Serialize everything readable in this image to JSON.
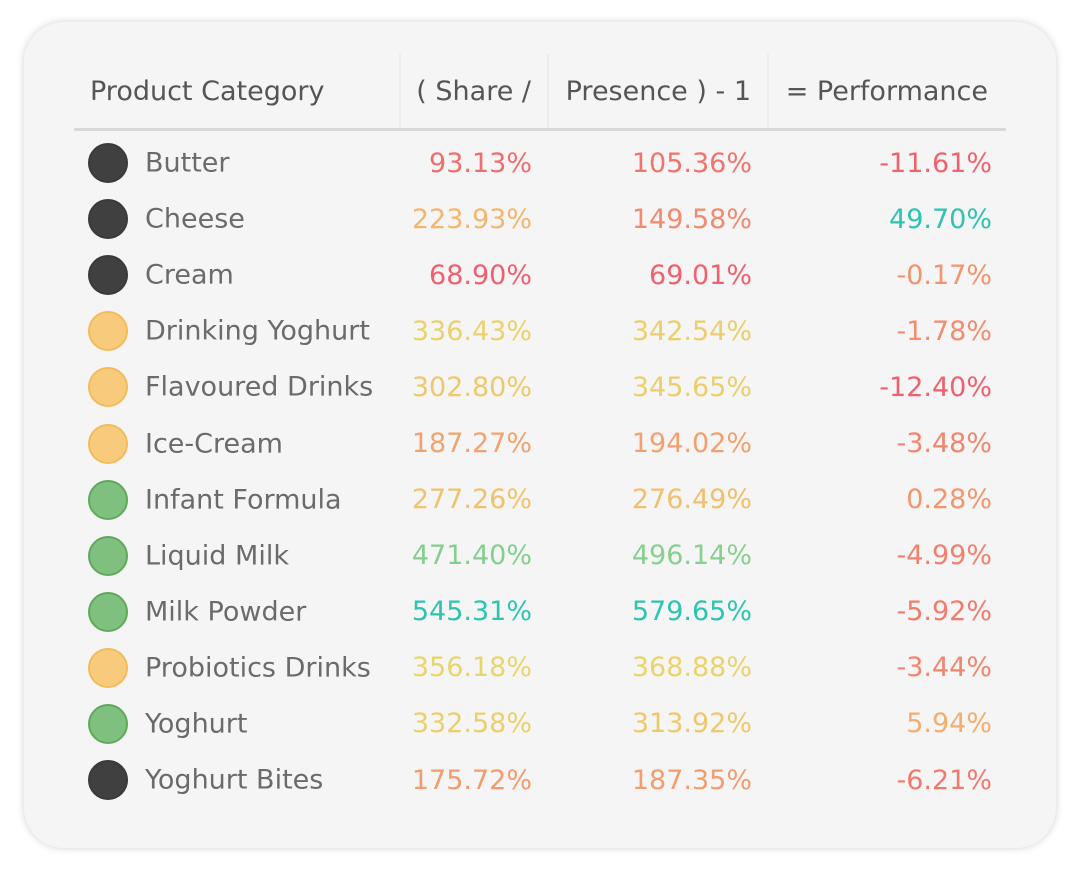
{
  "chart_data": {
    "type": "table",
    "columns": [
      "Product Category",
      "( Share /",
      "Presence ) - 1",
      "= Performance"
    ],
    "rows": [
      {
        "category": "Butter",
        "status": "dark",
        "share": "93.13%",
        "presence": "105.36%",
        "performance": "-11.61%",
        "share_value": 93.13,
        "presence_value": 105.36,
        "performance_value": -11.61
      },
      {
        "category": "Cheese",
        "status": "dark",
        "share": "223.93%",
        "presence": "149.58%",
        "performance": "49.70%",
        "share_value": 223.93,
        "presence_value": 149.58,
        "performance_value": 49.7
      },
      {
        "category": "Cream",
        "status": "dark",
        "share": "68.90%",
        "presence": "69.01%",
        "performance": "-0.17%",
        "share_value": 68.9,
        "presence_value": 69.01,
        "performance_value": -0.17
      },
      {
        "category": "Drinking Yoghurt",
        "status": "amber",
        "share": "336.43%",
        "presence": "342.54%",
        "performance": "-1.78%",
        "share_value": 336.43,
        "presence_value": 342.54,
        "performance_value": -1.78
      },
      {
        "category": "Flavoured Drinks",
        "status": "amber",
        "share": "302.80%",
        "presence": "345.65%",
        "performance": "-12.40%",
        "share_value": 302.8,
        "presence_value": 345.65,
        "performance_value": -12.4
      },
      {
        "category": "Ice-Cream",
        "status": "amber",
        "share": "187.27%",
        "presence": "194.02%",
        "performance": "-3.48%",
        "share_value": 187.27,
        "presence_value": 194.02,
        "performance_value": -3.48
      },
      {
        "category": "Infant Formula",
        "status": "green",
        "share": "277.26%",
        "presence": "276.49%",
        "performance": "0.28%",
        "share_value": 277.26,
        "presence_value": 276.49,
        "performance_value": 0.28
      },
      {
        "category": "Liquid Milk",
        "status": "green",
        "share": "471.40%",
        "presence": "496.14%",
        "performance": "-4.99%",
        "share_value": 471.4,
        "presence_value": 496.14,
        "performance_value": -4.99
      },
      {
        "category": "Milk Powder",
        "status": "green",
        "share": "545.31%",
        "presence": "579.65%",
        "performance": "-5.92%",
        "share_value": 545.31,
        "presence_value": 579.65,
        "performance_value": -5.92
      },
      {
        "category": "Probiotics Drinks",
        "status": "amber",
        "share": "356.18%",
        "presence": "368.88%",
        "performance": "-3.44%",
        "share_value": 356.18,
        "presence_value": 368.88,
        "performance_value": -3.44
      },
      {
        "category": "Yoghurt",
        "status": "green",
        "share": "332.58%",
        "presence": "313.92%",
        "performance": "5.94%",
        "share_value": 332.58,
        "presence_value": 313.92,
        "performance_value": 5.94
      },
      {
        "category": "Yoghurt Bites",
        "status": "dark",
        "share": "175.72%",
        "presence": "187.35%",
        "performance": "-6.21%",
        "share_value": 175.72,
        "presence_value": 187.35,
        "performance_value": -6.21
      }
    ]
  },
  "colors": {
    "status_dark": "#404040",
    "status_amber": "#f8cb7c",
    "status_green": "#7fc07e",
    "scale_low": "#f0606e",
    "scale_mid": "#f3b86e",
    "scale_high": "#e6dc6c",
    "scale_top": "#2ec4b0"
  }
}
